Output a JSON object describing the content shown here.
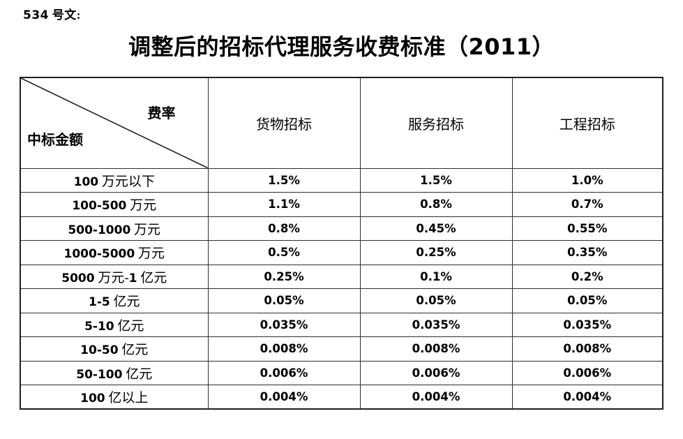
{
  "doc_label": "534 号文:",
  "title": "调整后的招标代理服务收费标准（2011）",
  "table": {
    "corner": {
      "top_right": "费率",
      "bottom_left": "中标金额"
    },
    "columns": [
      "货物招标",
      "服务招标",
      "工程招标"
    ],
    "rows": [
      {
        "label": "100 万元以下",
        "values": [
          "1.5%",
          "1.5%",
          "1.0%"
        ]
      },
      {
        "label": "100-500 万元",
        "values": [
          "1.1%",
          "0.8%",
          "0.7%"
        ]
      },
      {
        "label": "500-1000 万元",
        "values": [
          "0.8%",
          "0.45%",
          "0.55%"
        ]
      },
      {
        "label": "1000-5000 万元",
        "values": [
          "0.5%",
          "0.25%",
          "0.35%"
        ]
      },
      {
        "label": "5000 万元-1 亿元",
        "values": [
          "0.25%",
          "0.1%",
          "0.2%"
        ]
      },
      {
        "label": "1-5 亿元",
        "values": [
          "0.05%",
          "0.05%",
          "0.05%"
        ]
      },
      {
        "label": "5-10 亿元",
        "values": [
          "0.035%",
          "0.035%",
          "0.035%"
        ]
      },
      {
        "label": "10-50 亿元",
        "values": [
          "0.008%",
          "0.008%",
          "0.008%"
        ]
      },
      {
        "label": "50-100 亿元",
        "values": [
          "0.006%",
          "0.006%",
          "0.006%"
        ]
      },
      {
        "label": "100 亿以上",
        "values": [
          "0.004%",
          "0.004%",
          "0.004%"
        ]
      }
    ]
  },
  "colors": {
    "text": "#000000",
    "border": "#2e2e2e",
    "background": "#ffffff"
  }
}
